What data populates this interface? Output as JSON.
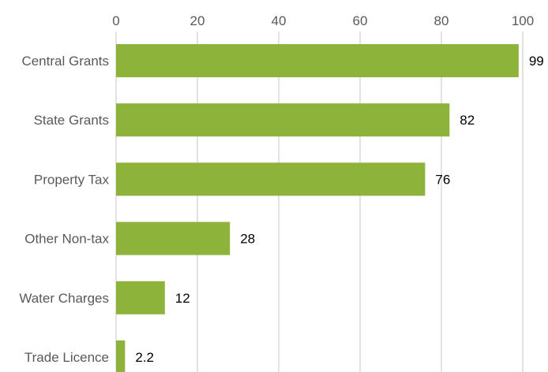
{
  "chart_data": {
    "type": "bar",
    "orientation": "horizontal",
    "categories": [
      "Central Grants",
      "State Grants",
      "Property Tax",
      "Other Non-tax",
      "Water Charges",
      "Trade Licence"
    ],
    "values": [
      99,
      82,
      76,
      28,
      12,
      2.2
    ],
    "value_labels": [
      "99",
      "82",
      "76",
      "28",
      "12",
      "2.2"
    ],
    "title": "",
    "xlabel": "",
    "ylabel": "",
    "xlim": [
      0,
      100
    ],
    "x_ticks": [
      "0",
      "20",
      "40",
      "60",
      "80",
      "100"
    ],
    "x_axis_position": "top",
    "grid": true,
    "legend": "none",
    "bar_color": "#8db33a"
  }
}
